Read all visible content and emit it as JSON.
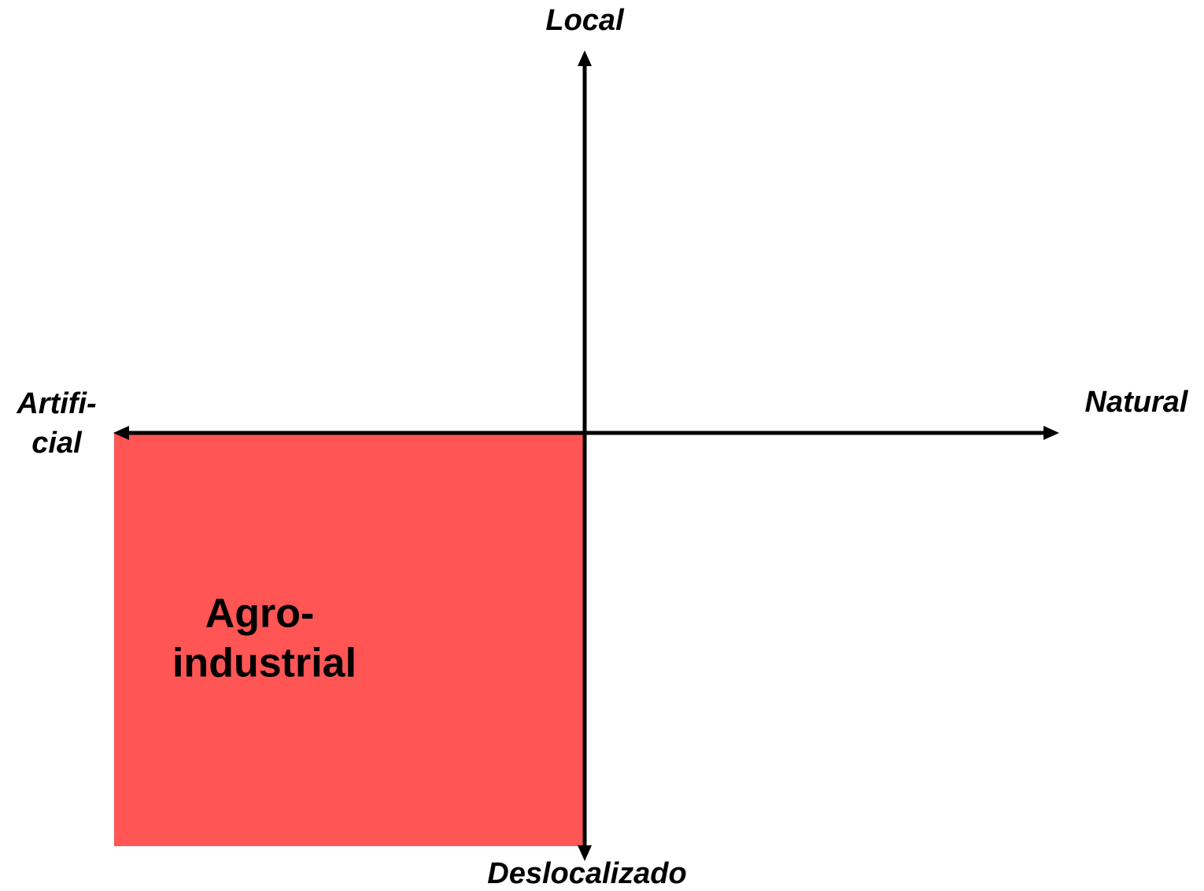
{
  "axes": {
    "top": "Local",
    "bottom": "Deslocalizado",
    "left": [
      "Artifi-",
      "cial"
    ],
    "right": "Natural"
  },
  "quadrants": [
    {
      "label": [
        "Agro-",
        "industrial"
      ]
    }
  ]
}
